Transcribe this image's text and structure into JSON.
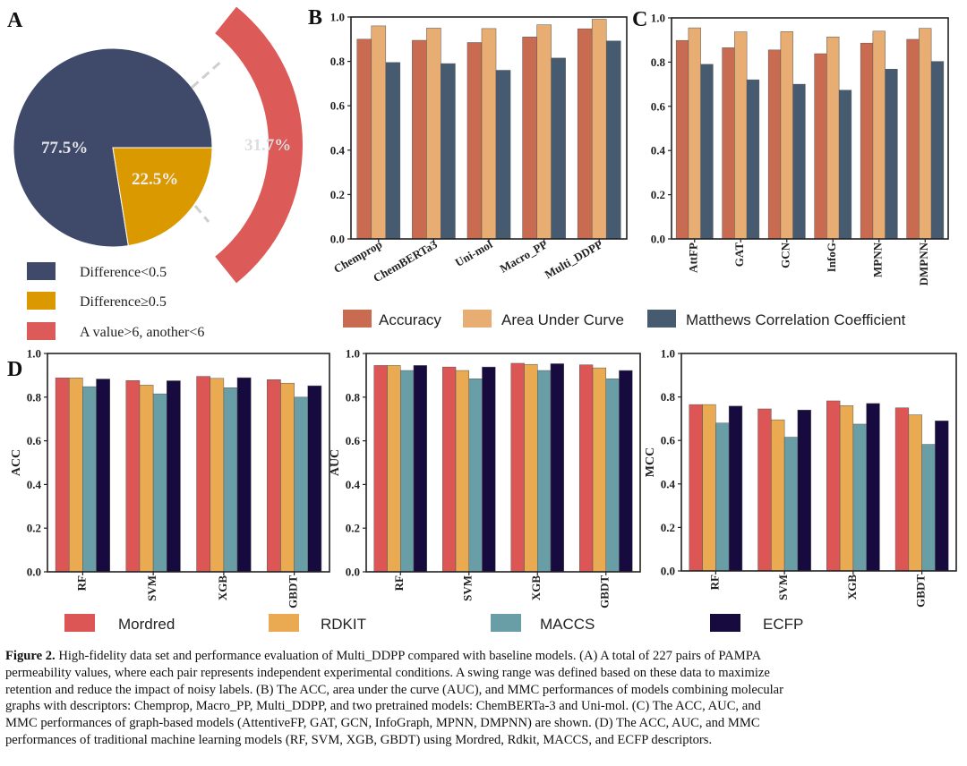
{
  "panels": {
    "a": "A",
    "b": "B",
    "c": "C",
    "d": "D"
  },
  "legend_a": [
    "Difference<0.5",
    "Difference≥0.5",
    "A value>6, another<6"
  ],
  "colors": {
    "navy": "#3f4a6b",
    "gold": "#db9900",
    "red_ring": "#dc5a58",
    "acc": "#c96b51",
    "auc": "#e8ad72",
    "mcc": "#465a70",
    "mordred": "#dc5656",
    "rdkit": "#e9aa52",
    "maccs": "#6a9ea6",
    "ecfp": "#170a3e"
  },
  "chart_data": [
    {
      "type": "pie",
      "panel": "A",
      "labels": [
        "Difference<0.5",
        "Difference≥0.5"
      ],
      "values": [
        77.5,
        22.5
      ],
      "value_labels": [
        "77.5%",
        "22.5%"
      ],
      "sub_ring": {
        "label": "A value>6, another<6",
        "value": 31.7,
        "value_label": "31.7%"
      }
    },
    {
      "type": "bar",
      "panel": "B",
      "categories": [
        "Chemprop",
        "ChemBERTa3",
        "Uni-mol",
        "Macro_PP",
        "Multi_DDPP"
      ],
      "series": [
        {
          "name": "Accuracy",
          "values": [
            0.9,
            0.895,
            0.885,
            0.91,
            0.947
          ]
        },
        {
          "name": "Area Under Curve",
          "values": [
            0.96,
            0.95,
            0.948,
            0.965,
            0.99
          ]
        },
        {
          "name": "Matthews Correlation Coefficient",
          "values": [
            0.795,
            0.79,
            0.76,
            0.815,
            0.892
          ]
        }
      ],
      "ylim": [
        0,
        1
      ],
      "yticks": [
        "0.0",
        "0.2",
        "0.4",
        "0.6",
        "0.8",
        "1.0"
      ],
      "ylabel": ""
    },
    {
      "type": "bar",
      "panel": "C",
      "categories": [
        "AttFP",
        "GAT",
        "GCN",
        "InfoG",
        "MPNN",
        "DMPNN"
      ],
      "series": [
        {
          "name": "Accuracy",
          "values": [
            0.898,
            0.865,
            0.855,
            0.838,
            0.886,
            0.903
          ]
        },
        {
          "name": "Area Under Curve",
          "values": [
            0.955,
            0.937,
            0.938,
            0.914,
            0.94,
            0.953
          ]
        },
        {
          "name": "Matthews Correlation Coefficient",
          "values": [
            0.79,
            0.72,
            0.7,
            0.673,
            0.768,
            0.803
          ]
        }
      ],
      "ylim": [
        0,
        1
      ],
      "yticks": [
        "0.0",
        "0.2",
        "0.4",
        "0.6",
        "0.8",
        "1.0"
      ],
      "ylabel": ""
    },
    {
      "type": "bar",
      "panel": "D",
      "categories": [
        "RF",
        "SVM",
        "XGB",
        "GBDT"
      ],
      "series": [
        {
          "name": "Mordred",
          "values": [
            0.888,
            0.876,
            0.895,
            0.88
          ]
        },
        {
          "name": "RDKIT",
          "values": [
            0.888,
            0.855,
            0.886,
            0.864
          ]
        },
        {
          "name": "MACCS",
          "values": [
            0.848,
            0.815,
            0.843,
            0.8
          ]
        },
        {
          "name": "ECFP",
          "values": [
            0.883,
            0.875,
            0.889,
            0.852
          ]
        }
      ],
      "ylim": [
        0,
        1
      ],
      "yticks": [
        "0.0",
        "0.2",
        "0.4",
        "0.6",
        "0.8",
        "1.0"
      ],
      "ylabel": "ACC"
    },
    {
      "type": "bar",
      "panel": "D",
      "categories": [
        "RF",
        "SVM",
        "XGB",
        "GBDT"
      ],
      "series": [
        {
          "name": "Mordred",
          "values": [
            0.945,
            0.938,
            0.955,
            0.948
          ]
        },
        {
          "name": "RDKIT",
          "values": [
            0.945,
            0.922,
            0.95,
            0.934
          ]
        },
        {
          "name": "MACCS",
          "values": [
            0.922,
            0.884,
            0.922,
            0.884
          ]
        },
        {
          "name": "ECFP",
          "values": [
            0.945,
            0.938,
            0.953,
            0.922
          ]
        }
      ],
      "ylim": [
        0,
        1
      ],
      "yticks": [
        "0.0",
        "0.2",
        "0.4",
        "0.6",
        "0.8",
        "1.0"
      ],
      "ylabel": "AUC"
    },
    {
      "type": "bar",
      "panel": "D",
      "categories": [
        "RF",
        "SVM",
        "XGB",
        "GBDT"
      ],
      "series": [
        {
          "name": "Mordred",
          "values": [
            0.765,
            0.745,
            0.782,
            0.75
          ]
        },
        {
          "name": "RDKIT",
          "values": [
            0.765,
            0.695,
            0.76,
            0.718
          ]
        },
        {
          "name": "MACCS",
          "values": [
            0.68,
            0.615,
            0.675,
            0.582
          ]
        },
        {
          "name": "ECFP",
          "values": [
            0.758,
            0.74,
            0.77,
            0.69
          ]
        }
      ],
      "ylim": [
        0,
        1
      ],
      "yticks": [
        "0.0",
        "0.2",
        "0.4",
        "0.6",
        "0.8",
        "1.0"
      ],
      "ylabel": "MCC"
    }
  ],
  "legend_bc": [
    "Accuracy",
    "Area Under Curve",
    "Matthews Correlation Coefficient"
  ],
  "legend_d": [
    "Mordred",
    "RDKIT",
    "MACCS",
    "ECFP"
  ],
  "caption": {
    "label": "Figure 2.",
    "lines": [
      " High-fidelity data set and performance evaluation of Multi_DDPP compared with baseline models. (A) A total of 227 pairs of PAMPA",
      "permeability values, where each pair represents independent experimental conditions. A swing range was defined based on these data to maximize",
      "retention and reduce the impact of noisy labels. (B) The ACC, area under the curve (AUC), and MMC performances of models combining molecular",
      "graphs with descriptors: Chemprop, Macro_PP, Multi_DDPP, and two pretrained models: ChemBERTa-3 and Uni-mol. (C) The ACC, AUC, and",
      "MMC performances of graph-based models (AttentiveFP, GAT, GCN, InfoGraph, MPNN, DMPNN) are shown. (D) The ACC, AUC, and MMC",
      "performances of traditional machine learning models (RF, SVM, XGB, GBDT) using Mordred, Rdkit, MACCS, and ECFP descriptors."
    ]
  }
}
